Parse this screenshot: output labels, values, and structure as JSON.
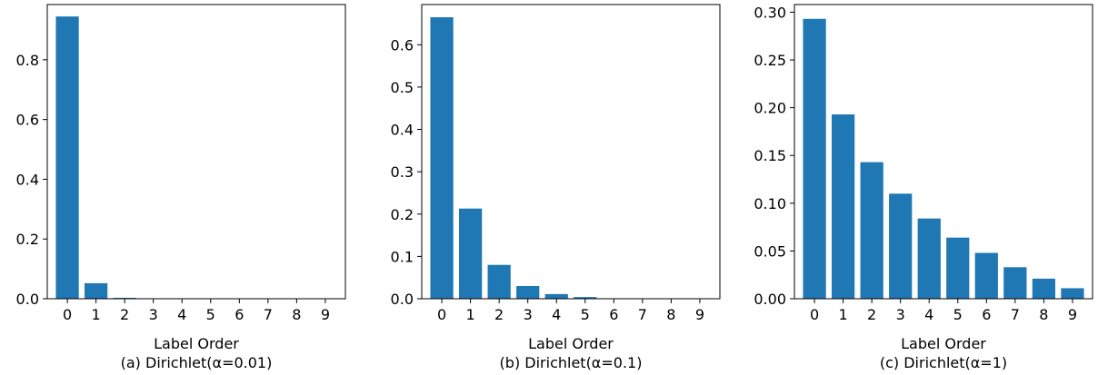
{
  "chart_data": [
    {
      "type": "bar",
      "categories": [
        "0",
        "1",
        "2",
        "3",
        "4",
        "5",
        "6",
        "7",
        "8",
        "9"
      ],
      "values": [
        0.945,
        0.052,
        0.003,
        0.0,
        0.0,
        0.0,
        0.0,
        0.0,
        0.0,
        0.0
      ],
      "xlabel": "Label Order",
      "caption": "(a) Dirichlet(α=0.01)",
      "ylim": [
        0,
        0.985
      ],
      "yticks": [
        0.0,
        0.2,
        0.4,
        0.6,
        0.8
      ],
      "ytick_labels": [
        "0.0",
        "0.2",
        "0.4",
        "0.6",
        "0.8"
      ],
      "grid": false
    },
    {
      "type": "bar",
      "categories": [
        "0",
        "1",
        "2",
        "3",
        "4",
        "5",
        "6",
        "7",
        "8",
        "9"
      ],
      "values": [
        0.665,
        0.213,
        0.08,
        0.03,
        0.011,
        0.004,
        0.001,
        0.0,
        0.0,
        0.0
      ],
      "xlabel": "Label Order",
      "caption": "(b) Dirichlet(α=0.1)",
      "ylim": [
        0,
        0.695
      ],
      "yticks": [
        0.0,
        0.1,
        0.2,
        0.3,
        0.4,
        0.5,
        0.6
      ],
      "ytick_labels": [
        "0.0",
        "0.1",
        "0.2",
        "0.3",
        "0.4",
        "0.5",
        "0.6"
      ],
      "grid": false
    },
    {
      "type": "bar",
      "categories": [
        "0",
        "1",
        "2",
        "3",
        "4",
        "5",
        "6",
        "7",
        "8",
        "9"
      ],
      "values": [
        0.293,
        0.193,
        0.143,
        0.11,
        0.084,
        0.064,
        0.048,
        0.033,
        0.021,
        0.011
      ],
      "xlabel": "Label Order",
      "caption": "(c) Dirichlet(α=1)",
      "ylim": [
        0,
        0.308
      ],
      "yticks": [
        0.0,
        0.05,
        0.1,
        0.15,
        0.2,
        0.25,
        0.3
      ],
      "ytick_labels": [
        "0.00",
        "0.05",
        "0.10",
        "0.15",
        "0.20",
        "0.25",
        "0.30"
      ],
      "grid": false
    }
  ],
  "colors": {
    "bar": "#1f77b4",
    "axis": "#000000"
  }
}
